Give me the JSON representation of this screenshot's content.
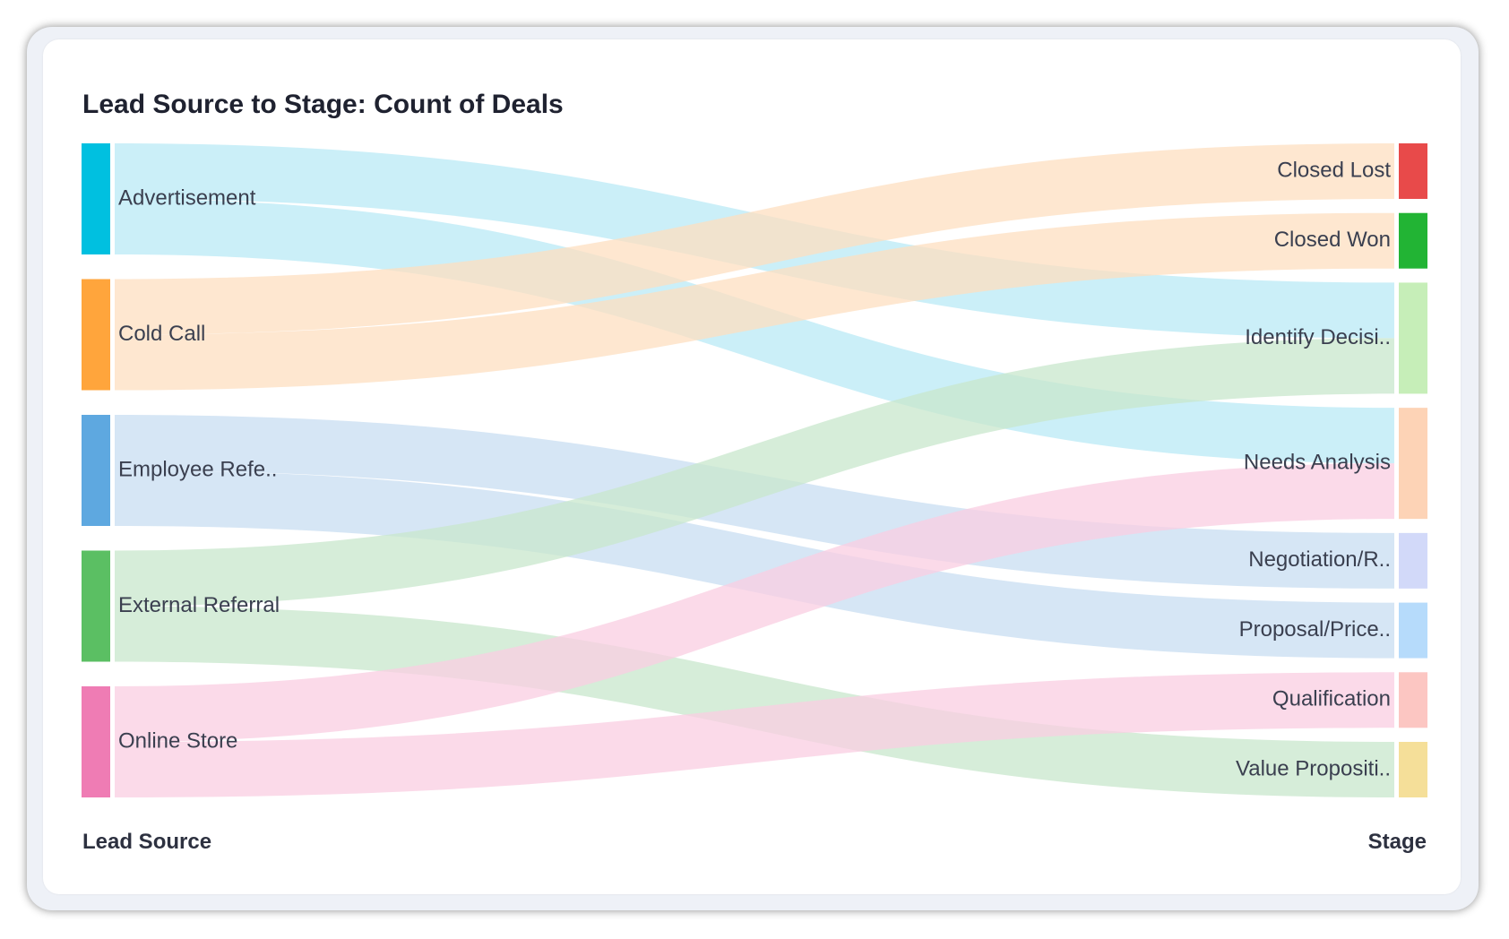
{
  "chart_data": {
    "type": "sankey",
    "title": "Lead Source to Stage: Count of Deals",
    "source_axis_label": "Lead Source",
    "target_axis_label": "Stage",
    "sources": [
      {
        "key": "advertisement",
        "label": "Advertisement",
        "color": "#00c0e0"
      },
      {
        "key": "cold_call",
        "label": "Cold Call",
        "color": "#ffa53c"
      },
      {
        "key": "employee_referral",
        "label": "Employee Refe..",
        "color": "#5ea8e0"
      },
      {
        "key": "external_referral",
        "label": "External Referral",
        "color": "#5bbf63"
      },
      {
        "key": "online_store",
        "label": "Online Store",
        "color": "#ef7cb4"
      }
    ],
    "targets": [
      {
        "key": "closed_lost",
        "label": "Closed Lost",
        "color": "#e84a4a"
      },
      {
        "key": "closed_won",
        "label": "Closed Won",
        "color": "#22b434"
      },
      {
        "key": "identify_decision",
        "label": "Identify Decisi..",
        "color": "#c6eeb8"
      },
      {
        "key": "needs_analysis",
        "label": "Needs Analysis",
        "color": "#fdd3b6"
      },
      {
        "key": "negotiation",
        "label": "Negotiation/R..",
        "color": "#d2d9f9"
      },
      {
        "key": "proposal",
        "label": "Proposal/Price..",
        "color": "#b6dbfb"
      },
      {
        "key": "qualification",
        "label": "Qualification",
        "color": "#fcc6c2"
      },
      {
        "key": "value_proposition",
        "label": "Value Propositi..",
        "color": "#f5df99"
      }
    ],
    "links": [
      {
        "source": "advertisement",
        "target": "identify_decision",
        "value": 1
      },
      {
        "source": "advertisement",
        "target": "needs_analysis",
        "value": 1
      },
      {
        "source": "cold_call",
        "target": "closed_lost",
        "value": 1
      },
      {
        "source": "cold_call",
        "target": "closed_won",
        "value": 1
      },
      {
        "source": "employee_referral",
        "target": "negotiation",
        "value": 1
      },
      {
        "source": "employee_referral",
        "target": "proposal",
        "value": 1
      },
      {
        "source": "external_referral",
        "target": "identify_decision",
        "value": 1
      },
      {
        "source": "external_referral",
        "target": "value_proposition",
        "value": 1
      },
      {
        "source": "online_store",
        "target": "needs_analysis",
        "value": 1
      },
      {
        "source": "online_store",
        "target": "qualification",
        "value": 1
      }
    ],
    "link_colors": {
      "advertisement": "#b9e9f6",
      "cold_call": "#fddfc0",
      "employee_referral": "#c8def2",
      "external_referral": "#c8e7cc",
      "online_store": "#f9cde2"
    },
    "link_opacity": 0.75
  }
}
